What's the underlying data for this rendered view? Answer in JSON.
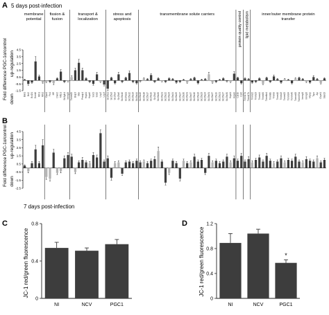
{
  "panelA": {
    "letter": "A",
    "time_label": "5 days post-infection",
    "categories": [
      "membrane potential",
      "fission & fusion",
      "transport & localization",
      "stress and apoptosis",
      "transmembrane solute carriers",
      "protein quality control",
      "lipid metabolism",
      "inner/outer membrane protein transfer"
    ],
    "ylabel": "Fold difference PGC-1α/control",
    "up_label": "up-regulation",
    "down_label": "down",
    "yticks": [
      "4.5",
      "3.5",
      "2.5",
      "1.5",
      "0.5",
      "-0.5",
      "-1.5"
    ]
  },
  "panelB": {
    "letter": "B",
    "time_label": "7 days post-infection",
    "ylabel": "Fold difference PGC-1α/control",
    "up_label": "up-regulation",
    "down_label": "down",
    "yticks": [
      "4.5",
      "3.5",
      "2.5",
      "1.5",
      "0.5",
      "-0.5",
      "-1.5",
      "-2.5"
    ]
  },
  "panelC": {
    "letter": "C",
    "ylabel": "JC-1 red/green fluorescence",
    "yticks": [
      "0",
      "0.4",
      "0.8"
    ]
  },
  "panelD": {
    "letter": "D",
    "ylabel": "JC-1 red/green fluorescence",
    "yticks": [
      "0",
      "0.4",
      "0.8",
      "1.2"
    ],
    "significance": "*"
  },
  "colors": {
    "dark": "#3d3d3d",
    "light": "#b4b4b4",
    "axis": "#222222"
  },
  "chart_data": [
    {
      "type": "bar",
      "id": "A",
      "ylim": [
        -1.5,
        4.5
      ],
      "dividers_after_index": [
        5,
        12,
        22,
        31,
        58,
        60,
        62
      ],
      "values": [
        0.1,
        -0.5,
        -0.3,
        2.8,
        0.6,
        -0.3,
        -0.2,
        -0.2,
        -0.4,
        0.3,
        1.3,
        -0.2,
        -0.1,
        0.5,
        1.5,
        2.6,
        1.5,
        0.3,
        -0.2,
        -0.5,
        0.9,
        -0.2,
        -0.6,
        -1.2,
        0.4,
        -0.4,
        0.9,
        -0.2,
        0.4,
        1.1,
        -0.2,
        -0.4,
        -0.1,
        0.3,
        0.2,
        0.8,
        -0.2,
        0.3,
        -0.1,
        -0.2,
        0.3,
        0.2,
        -0.3,
        -0.2,
        0.1,
        -0.3,
        0.2,
        0.4,
        -0.4,
        0.1,
        0.2,
        0.9,
        -0.3,
        -0.2,
        0.1,
        0.3,
        -0.1,
        -0.2,
        1.0,
        0.4,
        -0.4,
        0.3,
        0.2,
        -0.3,
        -0.2,
        0.3,
        -0.5,
        0.4,
        -0.2,
        0.6,
        0.2,
        -0.3,
        0.2,
        0.1,
        -0.4,
        0.3,
        0.4,
        0.2,
        -0.2,
        -0.3,
        0.5,
        0.2,
        -0.4,
        0.3
      ],
      "errors": [
        0.1,
        0.2,
        0.1,
        0.7,
        0.2,
        0.1,
        0.1,
        0.1,
        0.2,
        0.1,
        0.3,
        0.1,
        0.1,
        0.2,
        0.3,
        0.5,
        0.3,
        0.1,
        0.1,
        0.2,
        0.3,
        0.1,
        0.2,
        0.3,
        0.1,
        0.1,
        0.3,
        0.1,
        0.1,
        0.3,
        0.1,
        0.1,
        0.1,
        0.1,
        0.1,
        0.2,
        0.1,
        0.1,
        0.1,
        0.1,
        0.1,
        0.1,
        0.1,
        0.1,
        0.1,
        0.1,
        0.1,
        0.1,
        0.1,
        0.1,
        0.1,
        0.3,
        0.1,
        0.1,
        0.1,
        0.1,
        0.1,
        0.1,
        0.3,
        0.1,
        0.1,
        0.1,
        0.1,
        0.1,
        0.1,
        0.1,
        0.1,
        0.1,
        0.1,
        0.2,
        0.1,
        0.1,
        0.1,
        0.1,
        0.1,
        0.1,
        0.1,
        0.1,
        0.1,
        0.1,
        0.2,
        0.1,
        0.1,
        0.1
      ],
      "light_index": [
        5,
        6,
        8,
        12,
        13,
        21,
        33,
        38,
        45,
        51,
        52,
        57,
        66,
        72,
        75,
        78,
        82
      ],
      "gene_labels": [
        "Bak1",
        "Bcl2",
        "Bcl2l1",
        "Dnm1l",
        "Mfn1",
        "Mfn2",
        "Opa1",
        "Fis1",
        "Mff",
        "Dnm2",
        "Mtfp1",
        "Sh3glb1",
        "Immp2l",
        "Tomm20",
        "Bnip3",
        "Bax",
        "Pmaip1",
        "Hspd1",
        "Hspa9",
        "Sod1",
        "Sod2",
        "Ucp2",
        "Ucp3",
        "Slc25a1",
        "Slc25a3",
        "Slc25a4",
        "Slc25a5",
        "Slc25a10",
        "Slc25a11",
        "Slc25a12",
        "Slc25a13",
        "Slc25a14",
        "Slc25a15",
        "Slc25a16",
        "Slc25a17",
        "Slc25a19",
        "Slc25a2",
        "Slc25a20",
        "Slc25a21",
        "Slc25a22",
        "Slc25a23",
        "Slc25a24",
        "Slc25a25",
        "Slc25a27",
        "Slc25a30",
        "Slc25a31",
        "Slc25a37",
        "Slc25a10",
        "Slc25a13",
        "Slc25a23",
        "Slc25a24",
        "Slc25a31",
        "Slc25a37",
        "Slc25a19",
        "Slc25a21",
        "Slc25a27",
        "Slc25a30",
        "Hspd1",
        "Hspa9",
        "Cpt1b",
        "Cpt2",
        "Timm17a",
        "Timm17b",
        "Timm22",
        "Timm23",
        "Timm44",
        "Timm50",
        "Timm8a1",
        "Timm8b",
        "Timm9",
        "Timm10",
        "Timm13",
        "Tomm22",
        "Tomm34",
        "Tomm40",
        "Tomm40l",
        "Tomm70a",
        "Immp1l",
        "Immp2l",
        "Mipep",
        "Tspo",
        "Aip",
        "Grpel1",
        "Stard3"
      ]
    },
    {
      "type": "bar",
      "id": "B",
      "ylim": [
        -2.5,
        4.5
      ],
      "dividers_after_index": [
        5,
        12,
        22,
        31,
        58,
        60,
        62
      ],
      "values": [
        0.3,
        -0.4,
        0.6,
        2.3,
        0.6,
        2.8,
        -1.1,
        -1.3,
        1.9,
        -0.6,
        -0.4,
        1.2,
        1.6,
        1.4,
        -0.5,
        0.7,
        1.0,
        0.7,
        0.6,
        1.6,
        1.3,
        4.3,
        0.8,
        1.2,
        -1.2,
        0.6,
        0.7,
        -0.7,
        0.7,
        0.8,
        0.6,
        0.9,
        0.7,
        0.8,
        0.6,
        0.9,
        1.1,
        2.1,
        0.8,
        -1.8,
        -0.6,
        0.9,
        0.6,
        -1.3,
        0.9,
        0.6,
        0.7,
        1.4,
        0.8,
        1.0,
        -0.6,
        1.5,
        0.7,
        0.9,
        0.6,
        0.8,
        1.4,
        0.7,
        1.2,
        0.9,
        1.5,
        0.8,
        1.1,
        0.7,
        1.0,
        1.3,
        0.8,
        1.5,
        0.9,
        0.6,
        0.8,
        1.2,
        0.7,
        1.0,
        0.9,
        1.4,
        0.8,
        0.7,
        1.1,
        0.9,
        0.8,
        1.2,
        0.7,
        1.0
      ],
      "errors": [
        0.1,
        0.2,
        0.2,
        0.5,
        0.2,
        0.7,
        0.3,
        0.3,
        0.4,
        0.2,
        0.2,
        0.3,
        0.3,
        0.3,
        0.2,
        0.2,
        0.3,
        0.2,
        0.2,
        0.3,
        0.3,
        0.4,
        0.2,
        0.3,
        0.3,
        0.2,
        0.2,
        0.2,
        0.2,
        0.2,
        0.2,
        0.2,
        0.2,
        0.2,
        0.2,
        0.2,
        0.3,
        0.5,
        0.2,
        0.3,
        0.2,
        0.2,
        0.2,
        0.3,
        0.2,
        0.2,
        0.2,
        0.3,
        0.2,
        0.2,
        0.2,
        0.3,
        0.2,
        0.2,
        0.2,
        0.2,
        0.3,
        0.2,
        0.3,
        0.2,
        0.3,
        0.2,
        0.3,
        0.2,
        0.2,
        0.3,
        0.2,
        0.3,
        0.2,
        0.2,
        0.2,
        0.3,
        0.2,
        0.2,
        0.2,
        0.3,
        0.2,
        0.2,
        0.3,
        0.2,
        0.2,
        0.3,
        0.2,
        0.2
      ],
      "light_index": [
        1,
        6,
        7,
        9,
        10,
        14,
        18,
        25,
        26,
        33,
        37,
        40,
        44,
        46,
        52,
        57,
        63,
        69,
        72,
        77,
        81
      ]
    },
    {
      "type": "bar",
      "id": "C",
      "categories": [
        "NI",
        "NCV",
        "PGC1"
      ],
      "values": [
        0.54,
        0.51,
        0.58
      ],
      "errors": [
        0.06,
        0.03,
        0.05
      ],
      "ylim": [
        0,
        0.8
      ]
    },
    {
      "type": "bar",
      "id": "D",
      "categories": [
        "NI",
        "NCV",
        "PGC1"
      ],
      "values": [
        0.89,
        1.04,
        0.57
      ],
      "errors": [
        0.15,
        0.07,
        0.05
      ],
      "ylim": [
        0,
        1.2
      ]
    }
  ]
}
